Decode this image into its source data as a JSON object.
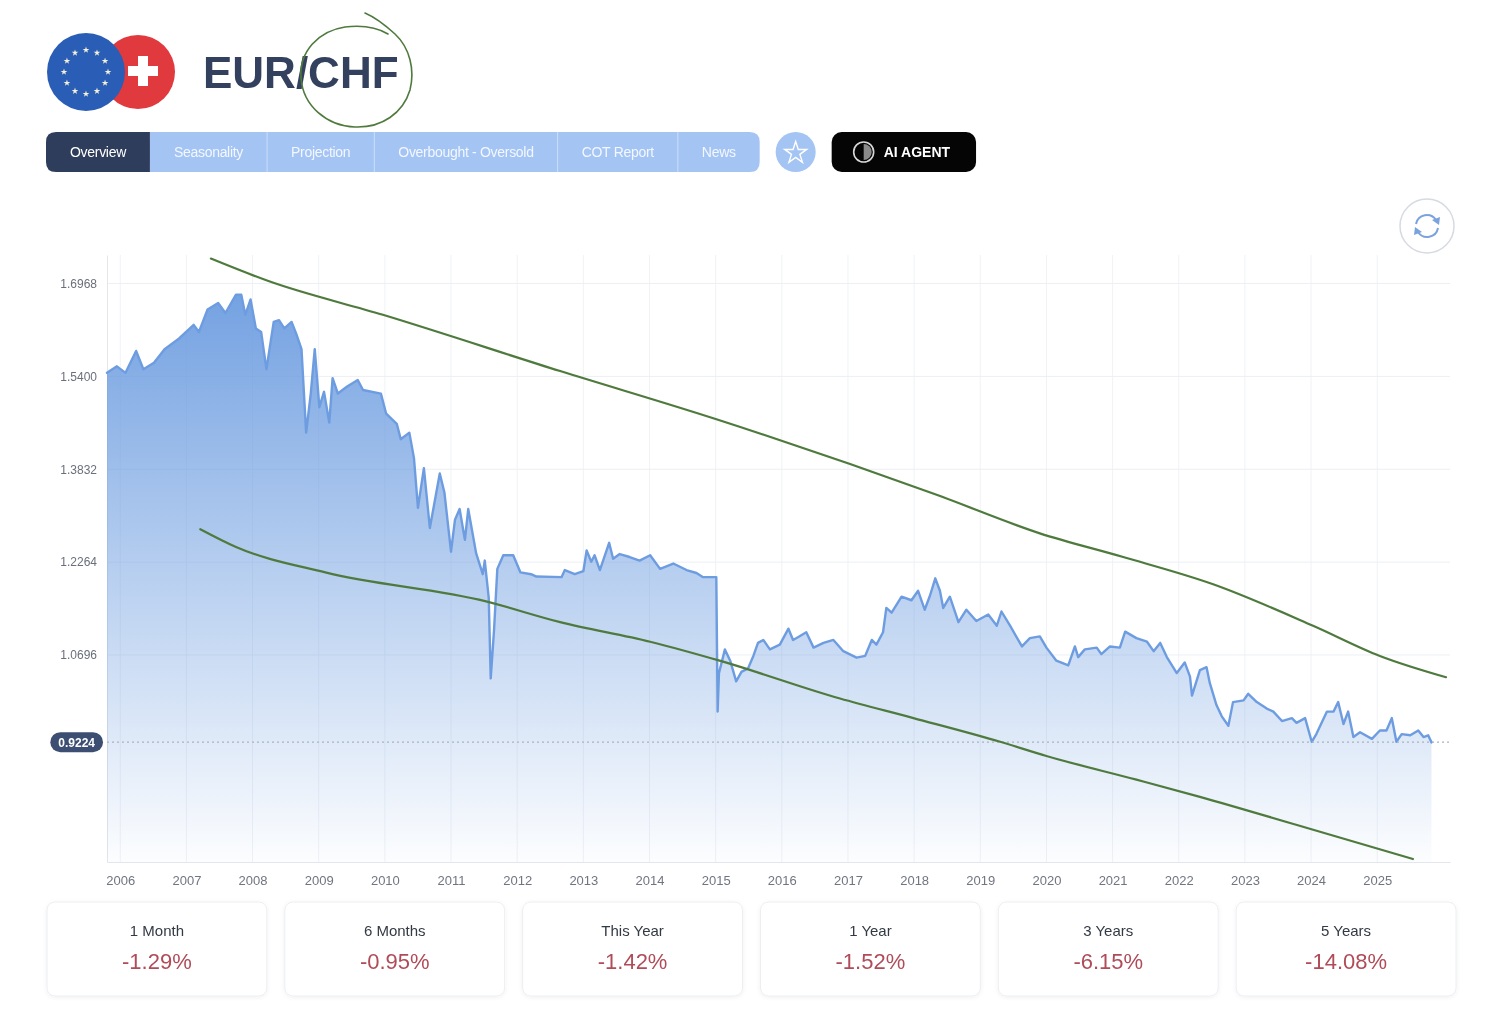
{
  "chart_data": [
    {
      "type": "area",
      "title": "EUR/CHF",
      "annotations": [
        "Overview",
        "Seasonality",
        "Projection",
        "Overbought - Oversold",
        "COT Report",
        "News",
        "AI AGENT"
      ],
      "xlim": [
        2005.8,
        2026.1
      ],
      "ylim": [
        0.72,
        1.745
      ],
      "xticks": [
        2006,
        2007,
        2008,
        2009,
        2010,
        2011,
        2012,
        2013,
        2014,
        2015,
        2016,
        2017,
        2018,
        2019,
        2020,
        2021,
        2022,
        2023,
        2024,
        2025
      ],
      "yticks": [
        {
          "value": 1.0696,
          "label": "1.0696"
        },
        {
          "value": 1.2264,
          "label": "1.2264"
        },
        {
          "value": 1.3832,
          "label": "1.3832"
        },
        {
          "value": 1.54,
          "label": "1.5400"
        },
        {
          "value": 1.6968,
          "label": "1.6968"
        }
      ],
      "grid": true,
      "ref_lines": [
        {
          "axis": "y",
          "value": 0.9224,
          "label": "0.9224",
          "line_style": "dotted",
          "color": "#aab2c2"
        }
      ],
      "series": [
        {
          "type": "area",
          "color": "#6d9de0",
          "x": [
            2005.8,
            2005.95,
            2006.08,
            2006.24,
            2006.35,
            2006.51,
            2006.67,
            2006.89,
            2007.11,
            2007.19,
            2007.32,
            2007.48,
            2007.59,
            2007.75,
            2007.83,
            2007.89,
            2007.97,
            2008.05,
            2008.13,
            2008.21,
            2008.32,
            2008.4,
            2008.48,
            2008.59,
            2008.67,
            2008.74,
            2008.81,
            2008.88,
            2008.94,
            2009.01,
            2009.08,
            2009.16,
            2009.21,
            2009.29,
            2009.43,
            2009.59,
            2009.67,
            2009.94,
            2010.02,
            2010.18,
            2010.24,
            2010.37,
            2010.44,
            2010.5,
            2010.59,
            2010.68,
            2010.83,
            2010.9,
            2011.0,
            2011.06,
            2011.13,
            2011.21,
            2011.26,
            2011.38,
            2011.48,
            2011.51,
            2011.57,
            2011.6,
            2011.65,
            2011.7,
            2011.79,
            2011.94,
            2012.05,
            2012.21,
            2012.29,
            2012.67,
            2012.72,
            2012.87,
            2013.0,
            2013.05,
            2013.12,
            2013.17,
            2013.25,
            2013.39,
            2013.45,
            2013.55,
            2013.7,
            2013.85,
            2014.01,
            2014.16,
            2014.36,
            2014.56,
            2014.71,
            2014.81,
            2015.01,
            2015.03,
            2015.05,
            2015.14,
            2015.22,
            2015.31,
            2015.39,
            2015.49,
            2015.57,
            2015.64,
            2015.72,
            2015.82,
            2015.97,
            2016.1,
            2016.17,
            2016.25,
            2016.37,
            2016.48,
            2016.63,
            2016.78,
            2016.93,
            2017.13,
            2017.26,
            2017.36,
            2017.43,
            2017.53,
            2017.58,
            2017.66,
            2017.81,
            2017.96,
            2018.06,
            2018.16,
            2018.24,
            2018.32,
            2018.39,
            2018.44,
            2018.54,
            2018.67,
            2018.79,
            2018.94,
            2019.12,
            2019.25,
            2019.32,
            2019.45,
            2019.63,
            2019.75,
            2019.9,
            2020.0,
            2020.15,
            2020.33,
            2020.43,
            2020.48,
            2020.58,
            2020.76,
            2020.83,
            2020.96,
            2021.11,
            2021.19,
            2021.36,
            2021.52,
            2021.62,
            2021.72,
            2021.82,
            2021.97,
            2022.09,
            2022.17,
            2022.2,
            2022.32,
            2022.42,
            2022.47,
            2022.57,
            2022.65,
            2022.75,
            2022.82,
            2022.98,
            2023.05,
            2023.18,
            2023.33,
            2023.43,
            2023.56,
            2023.71,
            2023.78,
            2023.91,
            2024.01,
            2024.08,
            2024.24,
            2024.34,
            2024.41,
            2024.49,
            2024.56,
            2024.64,
            2024.74,
            2024.92,
            2025.04,
            2025.14,
            2025.22,
            2025.29,
            2025.37,
            2025.5,
            2025.62,
            2025.7,
            2025.77,
            2025.82
          ],
          "values": [
            1.546,
            1.557,
            1.546,
            1.583,
            1.552,
            1.563,
            1.586,
            1.604,
            1.627,
            1.615,
            1.653,
            1.664,
            1.647,
            1.678,
            1.678,
            1.644,
            1.67,
            1.621,
            1.615,
            1.552,
            1.632,
            1.635,
            1.621,
            1.632,
            1.609,
            1.586,
            1.445,
            1.511,
            1.586,
            1.488,
            1.514,
            1.462,
            1.537,
            1.511,
            1.523,
            1.534,
            1.517,
            1.511,
            1.477,
            1.46,
            1.434,
            1.445,
            1.402,
            1.318,
            1.385,
            1.284,
            1.376,
            1.344,
            1.244,
            1.298,
            1.316,
            1.264,
            1.316,
            1.241,
            1.206,
            1.229,
            1.166,
            1.03,
            1.111,
            1.215,
            1.238,
            1.238,
            1.209,
            1.206,
            1.202,
            1.201,
            1.213,
            1.206,
            1.211,
            1.246,
            1.227,
            1.238,
            1.213,
            1.259,
            1.232,
            1.24,
            1.235,
            1.229,
            1.238,
            1.215,
            1.224,
            1.213,
            1.208,
            1.201,
            1.201,
            0.974,
            1.039,
            1.079,
            1.06,
            1.025,
            1.041,
            1.047,
            1.068,
            1.09,
            1.095,
            1.079,
            1.087,
            1.114,
            1.095,
            1.1,
            1.108,
            1.082,
            1.09,
            1.095,
            1.076,
            1.065,
            1.068,
            1.095,
            1.087,
            1.108,
            1.149,
            1.141,
            1.168,
            1.162,
            1.178,
            1.146,
            1.17,
            1.199,
            1.178,
            1.149,
            1.168,
            1.125,
            1.146,
            1.127,
            1.138,
            1.119,
            1.143,
            1.119,
            1.084,
            1.098,
            1.101,
            1.082,
            1.06,
            1.052,
            1.084,
            1.066,
            1.079,
            1.082,
            1.071,
            1.084,
            1.082,
            1.109,
            1.098,
            1.092,
            1.076,
            1.09,
            1.066,
            1.039,
            1.057,
            1.033,
            1.001,
            1.044,
            1.049,
            1.022,
            0.985,
            0.966,
            0.95,
            0.99,
            0.993,
            1.004,
            0.99,
            0.979,
            0.974,
            0.958,
            0.963,
            0.955,
            0.963,
            0.923,
            0.936,
            0.974,
            0.974,
            0.99,
            0.953,
            0.974,
            0.931,
            0.939,
            0.928,
            0.942,
            0.942,
            0.963,
            0.923,
            0.936,
            0.934,
            0.942,
            0.931,
            0.934,
            0.922
          ]
        },
        {
          "type": "line",
          "color": "#4f7a3e",
          "x": [
            2007.37,
            2008.24,
            2009.97,
            2012.65,
            2015.0,
            2018.34,
            2019.9,
            2021.16,
            2022.52,
            2024.03,
            2025.04,
            2026.04
          ],
          "values": [
            1.739,
            1.701,
            1.644,
            1.549,
            1.468,
            1.34,
            1.275,
            1.235,
            1.189,
            1.119,
            1.068,
            1.032
          ]
        },
        {
          "type": "line",
          "color": "#4f7a3e",
          "x": [
            2007.21,
            2007.75,
            2009.1,
            2011.53,
            2012.65,
            2014.01,
            2015.06,
            2016.88,
            2017.99,
            2019.3,
            2020.0,
            2021.36,
            2022.32,
            2023.8,
            2025.54
          ],
          "values": [
            1.282,
            1.252,
            1.209,
            1.16,
            1.125,
            1.092,
            1.06,
            0.996,
            0.963,
            0.923,
            0.899,
            0.859,
            0.83,
            0.782,
            0.725
          ]
        }
      ]
    },
    {
      "type": "other",
      "annotations": [
        "1 Month",
        "-1.29%",
        "6 Months",
        "-0.95%",
        "This Year",
        "-1.42%",
        "1 Year",
        "-1.52%",
        "3 Years",
        "-6.15%",
        "5 Years",
        "-14.08%"
      ]
    }
  ]
}
